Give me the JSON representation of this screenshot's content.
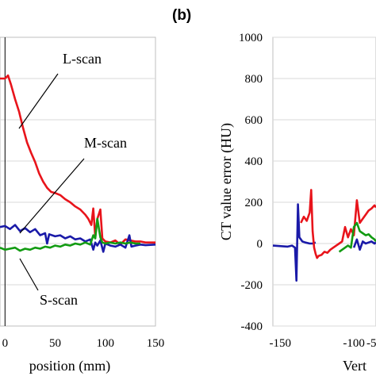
{
  "chart_data": [
    {
      "type": "line",
      "xlabel": "position (mm)",
      "ylabel": "",
      "xlim": [
        -5,
        150
      ],
      "ylim": [
        -400,
        1000
      ],
      "xticks": [
        "0",
        "50",
        "100",
        "150"
      ],
      "annotations": [
        "L-scan",
        "M-scan",
        "S-scan"
      ],
      "series": [
        {
          "name": "L-scan",
          "color": "#e8141b",
          "x": [
            -5,
            0,
            3,
            6,
            10,
            14,
            18,
            22,
            26,
            30,
            34,
            38,
            42,
            46,
            50,
            55,
            60,
            65,
            70,
            75,
            80,
            83,
            86,
            88,
            90,
            92,
            95,
            97,
            100,
            105,
            110,
            115,
            120,
            125,
            130,
            135,
            140,
            150
          ],
          "y": [
            800,
            800,
            815,
            770,
            700,
            640,
            560,
            490,
            440,
            395,
            340,
            300,
            270,
            250,
            245,
            235,
            215,
            200,
            180,
            165,
            140,
            120,
            90,
            170,
            30,
            120,
            165,
            25,
            10,
            5,
            15,
            -5,
            20,
            15,
            10,
            10,
            5,
            5
          ]
        },
        {
          "name": "M-scan",
          "color": "#1a1aa8",
          "x": [
            -5,
            0,
            5,
            10,
            15,
            20,
            25,
            30,
            35,
            40,
            42,
            44,
            50,
            55,
            60,
            65,
            70,
            75,
            80,
            85,
            88,
            90,
            92,
            95,
            98,
            100,
            105,
            110,
            115,
            120,
            124,
            126,
            130,
            135,
            140,
            150
          ],
          "y": [
            80,
            85,
            70,
            90,
            60,
            75,
            55,
            70,
            40,
            50,
            0,
            45,
            35,
            40,
            25,
            35,
            20,
            25,
            10,
            20,
            -30,
            5,
            -10,
            15,
            -40,
            0,
            -10,
            -15,
            -5,
            -20,
            40,
            -15,
            -10,
            -5,
            -8,
            -5
          ]
        },
        {
          "name": "S-scan",
          "color": "#129b12",
          "x": [
            -5,
            0,
            5,
            10,
            15,
            20,
            25,
            30,
            35,
            40,
            45,
            50,
            55,
            60,
            65,
            70,
            75,
            80,
            85,
            88,
            90,
            92,
            95,
            97,
            100,
            105,
            110,
            115,
            120,
            125,
            130,
            135
          ],
          "y": [
            -20,
            -30,
            -25,
            -20,
            -35,
            -25,
            -30,
            -20,
            -25,
            -15,
            -20,
            -10,
            -15,
            -5,
            -10,
            0,
            -5,
            5,
            -5,
            40,
            25,
            120,
            30,
            5,
            0,
            5,
            0,
            5,
            0,
            5,
            0,
            0
          ]
        }
      ]
    },
    {
      "type": "line",
      "xlabel": "Vert",
      "ylabel": "CT value error (HU)",
      "xlim": [
        -155,
        -85
      ],
      "ylim": [
        -400,
        1000
      ],
      "yticks": [
        "1000",
        "800",
        "600",
        "400",
        "200",
        "0",
        "-200",
        "-400"
      ],
      "xticks": [
        "-150",
        "-100",
        "-5"
      ],
      "series": [
        {
          "name": "",
          "color": "#1a1aa8",
          "x": [
            -155,
            -145,
            -142,
            -140,
            -139,
            -138,
            -137,
            -136,
            -135,
            -133,
            -130,
            -128,
            -126
          ],
          "y": [
            -10,
            -15,
            -10,
            -20,
            -180,
            190,
            30,
            20,
            10,
            5,
            0,
            0,
            5
          ]
        },
        {
          "name": "",
          "color": "#e8141b",
          "x": [
            -136,
            -134,
            -132,
            -130,
            -129,
            -128,
            -127,
            -126,
            -125,
            -124,
            -122,
            -120,
            -118,
            -116,
            -114,
            -112,
            -110,
            -108,
            -106,
            -104,
            -102,
            -100,
            -98,
            -96,
            -94,
            -92,
            -90,
            -88,
            -86,
            -85
          ],
          "y": [
            100,
            130,
            110,
            150,
            260,
            60,
            -20,
            -50,
            -70,
            -60,
            -55,
            -40,
            -45,
            -30,
            -20,
            -10,
            0,
            10,
            80,
            30,
            70,
            40,
            210,
            100,
            120,
            140,
            160,
            170,
            185,
            175
          ]
        },
        {
          "name": "",
          "color": "#129b12",
          "x": [
            -110,
            -108,
            -106,
            -104,
            -102,
            -100,
            -98,
            -96,
            -94,
            -92,
            -90,
            -88,
            -86,
            -85
          ],
          "y": [
            -40,
            -30,
            -20,
            -10,
            -20,
            80,
            100,
            60,
            50,
            40,
            45,
            30,
            20,
            10
          ]
        },
        {
          "name": "",
          "color": "#1a1aa8",
          "x": [
            -100,
            -98,
            -96,
            -94,
            -92,
            -90,
            -88,
            -86,
            -85
          ],
          "y": [
            -20,
            20,
            -30,
            10,
            0,
            5,
            10,
            0,
            5
          ]
        }
      ]
    }
  ],
  "panel_b": "(b)"
}
